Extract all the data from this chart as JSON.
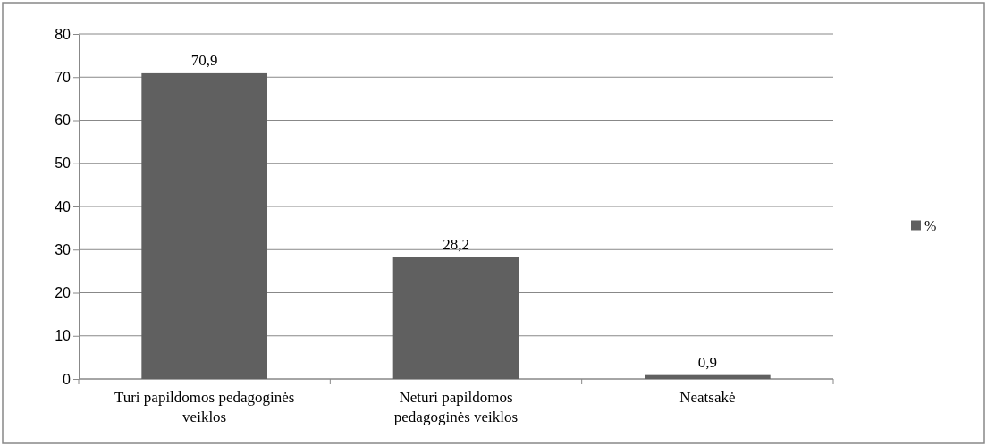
{
  "chart_data": {
    "type": "bar",
    "categories": [
      "Turi papildomos pedagoginės veiklos",
      "Neturi papildomos pedagoginės veiklos",
      "Neatsakė"
    ],
    "series": [
      {
        "name": "%",
        "color": "#606060",
        "values": [
          70.9,
          28.2,
          0.9
        ],
        "value_labels": [
          "70,9",
          "28,2",
          "0,9"
        ]
      }
    ],
    "ylim": [
      0,
      80
    ],
    "yticks": [
      0,
      10,
      20,
      30,
      40,
      50,
      60,
      70,
      80
    ],
    "grid": "y",
    "legend": "right"
  }
}
